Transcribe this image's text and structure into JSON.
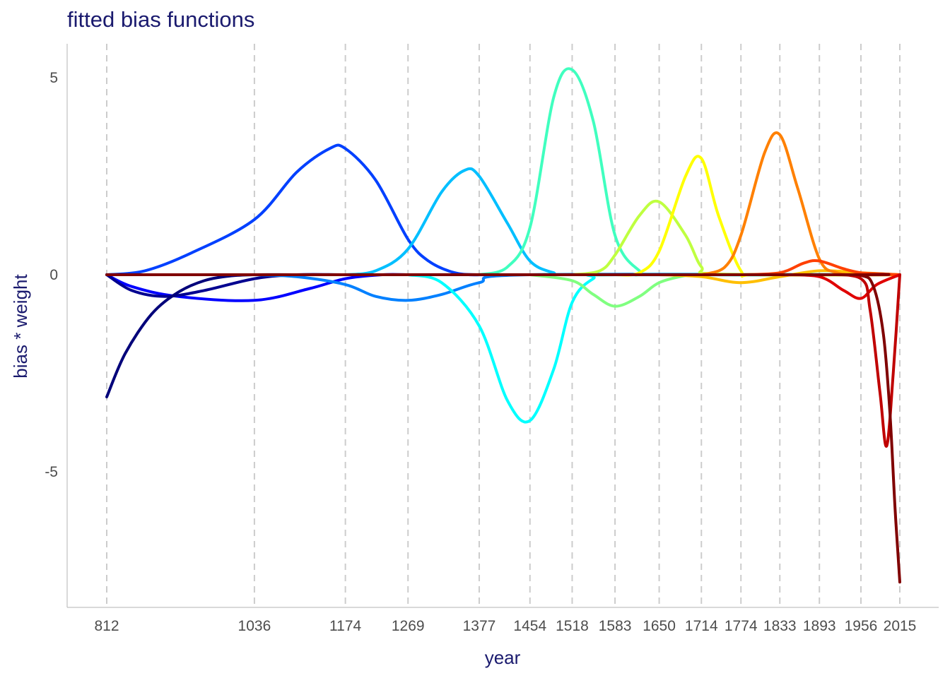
{
  "chart_data": {
    "type": "line",
    "title": "fitted bias functions",
    "xlabel": "year",
    "ylabel": "bias * weight",
    "xlim": [
      812,
      2015
    ],
    "ylim": [
      -8.3,
      5.9
    ],
    "x_ticks": [
      812,
      1036,
      1174,
      1269,
      1377,
      1454,
      1518,
      1583,
      1650,
      1714,
      1774,
      1833,
      1893,
      1956,
      2015
    ],
    "y_ticks": [
      {
        "value": 5,
        "label": "5"
      },
      {
        "value": 0,
        "label": "0"
      },
      {
        "value": -5,
        "label": "-5"
      }
    ],
    "vertical_gridlines": "dashed at each x tick",
    "series": [
      {
        "color": "#0000ff",
        "x": [
          812,
          850,
          920,
          1036,
          1120,
          1174,
          1230,
          1269
        ],
        "y": [
          0,
          -0.3,
          -0.55,
          -0.65,
          -0.35,
          -0.1,
          0,
          0
        ]
      },
      {
        "color": "#000090",
        "x": [
          812,
          850,
          900,
          960,
          1036,
          1100,
          1174,
          1250,
          2015
        ],
        "y": [
          0,
          -0.4,
          -0.55,
          -0.4,
          -0.1,
          0,
          0,
          0,
          0
        ]
      },
      {
        "color": "#00007a",
        "x": [
          812,
          840,
          880,
          920,
          960,
          1000,
          1036,
          1100,
          1200,
          2015
        ],
        "y": [
          -3.1,
          -2.0,
          -1.0,
          -0.45,
          -0.15,
          -0.03,
          0,
          0,
          0,
          0
        ]
      },
      {
        "color": "#0040ff",
        "x": [
          812,
          870,
          940,
          1036,
          1100,
          1150,
          1174,
          1220,
          1269,
          1300,
          1340,
          1377,
          1420,
          2015
        ],
        "y": [
          0,
          0.1,
          0.55,
          1.4,
          2.6,
          3.2,
          3.2,
          2.4,
          0.9,
          0.35,
          0.05,
          0,
          0,
          0
        ]
      },
      {
        "color": "#0080ff",
        "x": [
          1036,
          1100,
          1174,
          1220,
          1269,
          1320,
          1377,
          1454,
          2015
        ],
        "y": [
          0,
          -0.05,
          -0.25,
          -0.55,
          -0.65,
          -0.5,
          -0.2,
          0,
          0
        ]
      },
      {
        "color": "#00bfff",
        "x": [
          1174,
          1220,
          1269,
          1320,
          1355,
          1377,
          1420,
          1454,
          1490,
          1518,
          2015
        ],
        "y": [
          0,
          0.1,
          0.65,
          2.1,
          2.65,
          2.5,
          1.3,
          0.35,
          0.05,
          0,
          0
        ]
      },
      {
        "color": "#00ffff",
        "x": [
          1269,
          1320,
          1377,
          1420,
          1454,
          1490,
          1518,
          1550,
          1583,
          2015
        ],
        "y": [
          0,
          -0.2,
          -1.3,
          -3.2,
          -3.7,
          -2.4,
          -0.7,
          -0.1,
          0,
          0
        ]
      },
      {
        "color": "#40ffbf",
        "x": [
          1377,
          1420,
          1454,
          1490,
          1518,
          1550,
          1583,
          1620,
          1650,
          2015
        ],
        "y": [
          0,
          0.2,
          1.2,
          4.5,
          5.2,
          3.9,
          1.0,
          0.1,
          0,
          0
        ]
      },
      {
        "color": "#80ff80",
        "x": [
          1454,
          1518,
          1550,
          1583,
          1620,
          1650,
          1690,
          1714,
          2015
        ],
        "y": [
          0,
          -0.15,
          -0.5,
          -0.8,
          -0.55,
          -0.2,
          -0.02,
          0,
          0
        ]
      },
      {
        "color": "#bfff40",
        "x": [
          1518,
          1560,
          1583,
          1620,
          1650,
          1690,
          1714,
          1740,
          2015
        ],
        "y": [
          0,
          0.1,
          0.5,
          1.5,
          1.85,
          1.0,
          0.2,
          0.02,
          0
        ]
      },
      {
        "color": "#ffff00",
        "x": [
          1583,
          1620,
          1650,
          1690,
          1714,
          1740,
          1774,
          1800,
          2015
        ],
        "y": [
          0,
          0.05,
          0.6,
          2.5,
          2.95,
          1.5,
          0.1,
          0,
          0
        ]
      },
      {
        "color": "#ffbf00",
        "x": [
          1650,
          1714,
          1774,
          1833,
          1893,
          1956,
          2015
        ],
        "y": [
          0,
          -0.05,
          -0.2,
          -0.05,
          0.1,
          0.05,
          0
        ]
      },
      {
        "color": "#ff8000",
        "x": [
          1714,
          1750,
          1774,
          1810,
          1833,
          1860,
          1893,
          1920,
          1956,
          2015
        ],
        "y": [
          0,
          0.2,
          1.0,
          3.1,
          3.55,
          2.2,
          0.4,
          0.05,
          0,
          0
        ]
      },
      {
        "color": "#ff4000",
        "x": [
          1774,
          1833,
          1870,
          1893,
          1930,
          1956,
          1990,
          2015
        ],
        "y": [
          0,
          0.05,
          0.3,
          0.35,
          0.15,
          0.05,
          0.02,
          0
        ]
      },
      {
        "color": "#e00000",
        "x": [
          1833,
          1893,
          1930,
          1956,
          1980,
          2015
        ],
        "y": [
          0,
          -0.05,
          -0.4,
          -0.6,
          -0.25,
          0
        ]
      },
      {
        "color": "#c00000",
        "x": [
          1893,
          1956,
          1970,
          1985,
          1995,
          2005,
          2015
        ],
        "y": [
          0,
          -0.1,
          -0.9,
          -3.0,
          -4.35,
          -2.5,
          0
        ]
      },
      {
        "color": "#800000",
        "x": [
          812,
          1900,
          1956,
          1975,
          1990,
          2000,
          2008,
          2015
        ],
        "y": [
          0,
          0,
          -0.02,
          -0.3,
          -1.5,
          -3.5,
          -6.0,
          -7.8
        ]
      }
    ]
  }
}
